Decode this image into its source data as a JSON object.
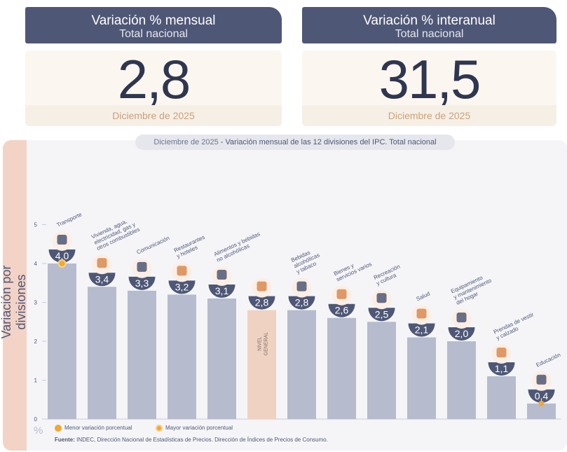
{
  "kpi_left": {
    "title": "Variación % mensual",
    "subtitle": "Total nacional",
    "value": "2,8",
    "date": "Diciembre de 2025"
  },
  "kpi_right": {
    "title": "Variación % interanual",
    "subtitle": "Total nacional",
    "value": "31,5",
    "date": "Diciembre de 2025"
  },
  "chart_title_date": "Diciembre de 2025",
  "chart_title_text": " - Variación mensual de las 12 divisiones del IPC. Total nacional",
  "y_axis_label": "Variación por divisiones",
  "y_unit": "%",
  "legend_min": "Menor variación porcentual",
  "legend_max": "Mayor variación porcentual",
  "source_label": "Fuente:",
  "source_text": " INDEC, Dirección Nacional de Estadísticas de Precios. Dirección de Índices de Precios de Consumo.",
  "colors": {
    "bar": "#b6bccd",
    "general_bar": "#f0d2c2",
    "dark": "#4e5775",
    "accent": "#f0a830",
    "icon": "#d98a50"
  },
  "chart_data": {
    "type": "bar",
    "title": "Variación mensual de las 12 divisiones del IPC. Total nacional",
    "ylabel": "Variación por divisiones",
    "ylim": [
      0,
      5
    ],
    "yticks": [
      "0",
      "1",
      "2",
      "3",
      "4",
      "5"
    ],
    "categories": [
      [
        "Transporte"
      ],
      [
        "Vivienda, agua,",
        "electricidad, gas y",
        "otros combustibles"
      ],
      [
        "Comunicación"
      ],
      [
        "Restaurantes",
        "y hoteles"
      ],
      [
        "Alimentos y bebidas",
        "no alcohólicas"
      ],
      [
        "NIVEL",
        "GENERAL"
      ],
      [
        "Bebidas",
        "alcohólicas",
        "y tabaco"
      ],
      [
        "Bienes y",
        "servicios varios"
      ],
      [
        "Recreación",
        "y cultura"
      ],
      [
        "Salud"
      ],
      [
        "Equipamiento",
        "y mantenimiento",
        "del hogar"
      ],
      [
        "Prendas de vestir",
        "y calzado"
      ],
      [
        "Educación"
      ]
    ],
    "values": [
      4.0,
      3.4,
      3.3,
      3.2,
      3.1,
      2.8,
      2.8,
      2.6,
      2.5,
      2.1,
      2.0,
      1.1,
      0.4
    ],
    "labels": [
      "4,0",
      "3,4",
      "3,3",
      "3,2",
      "3,1",
      "2,8",
      "2,8",
      "2,6",
      "2,5",
      "2,1",
      "2,0",
      "1,1",
      "0,4"
    ],
    "icons": [
      "bus-icon",
      "faucet-bulb-icon",
      "phone-icon",
      "dining-icon",
      "food-icon",
      "basket-icon",
      "drinks-icon",
      "comb-icon",
      "umbrella-icon",
      "medical-icon",
      "ac-unit-icon",
      "shirt-icon",
      "notebook-icon"
    ],
    "highlight": {
      "max_index": 0,
      "min_index": 12
    }
  }
}
